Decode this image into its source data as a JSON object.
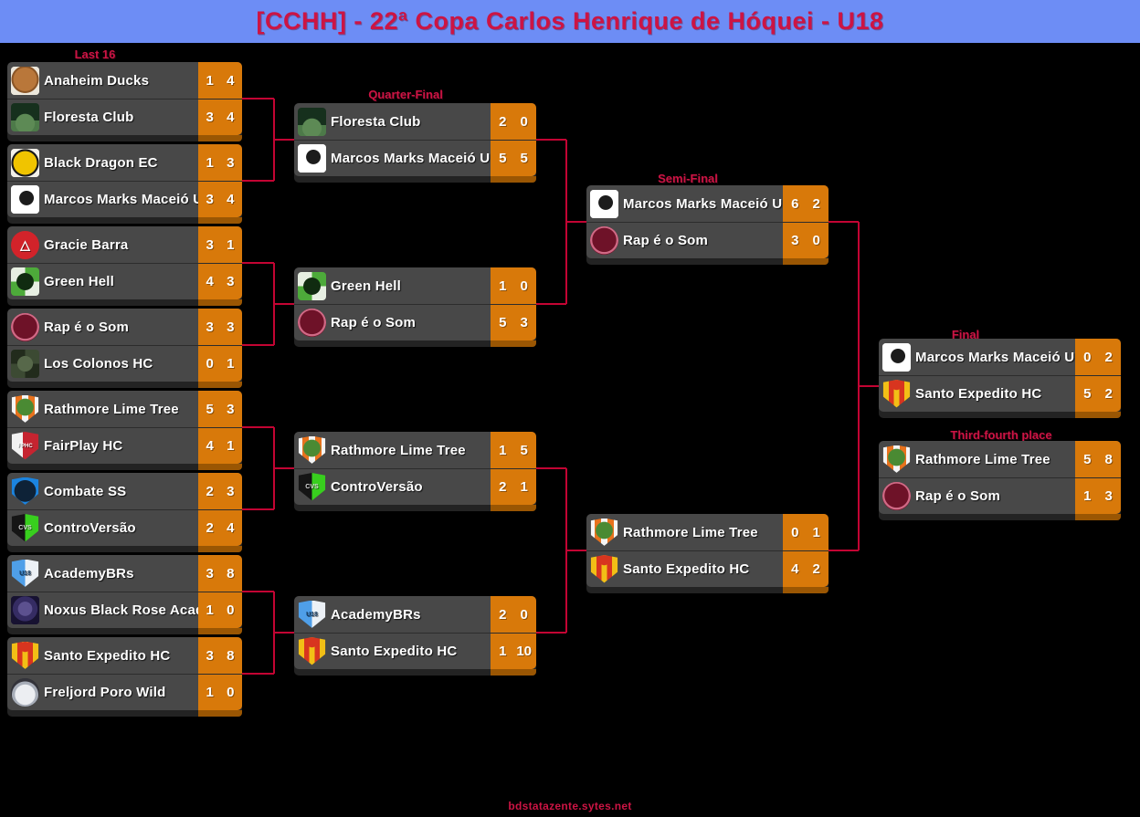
{
  "header": {
    "title": "[CCHH] - 22ª Copa Carlos Henrique de Hóquei - U18"
  },
  "footer": {
    "site": "bdstatazente.sytes.net"
  },
  "colors": {
    "page_bg": "#000000",
    "header_bg": "#6d8df5",
    "title_text": "#cc1444",
    "round_label_text": "#cc1444",
    "card_bg": "#484848",
    "score_box_bg": "#d8790a",
    "score_box_shadow": "#9a5603",
    "connector_line": "#c30433",
    "team_text": "#ffffff",
    "score_text": "#ffffff"
  },
  "teams": {
    "Anaheim Ducks": {
      "logo": {
        "shape": "square",
        "bg": "#ece7db",
        "emblem": "radial-gradient(circle at 50% 45%, #b9773a 55%, #8a5526 57% 64%, #ece7db 66%)",
        "text": "",
        "text_color": "",
        "text_size": ""
      }
    },
    "Floresta Club": {
      "logo": {
        "shape": "square",
        "bg": "linear-gradient(180deg, #16301d 0 62%, #4d7a49 62%)",
        "emblem": "radial-gradient(circle at 50% 72%, #5d8a55 38%, transparent 40%)",
        "text": "",
        "text_color": "",
        "text_size": ""
      }
    },
    "Black Dragon EC": {
      "logo": {
        "shape": "square",
        "bg": "#f3f1ea",
        "emblem": "radial-gradient(circle at 50% 50%, #f0c400 58%, #1a1a1a 60% 68%, #f3f1ea 70%)",
        "text": "",
        "text_color": "",
        "text_size": ""
      }
    },
    "Marcos Marks Maceió U18": {
      "logo": {
        "shape": "square",
        "bg": "#ffffff",
        "emblem": "radial-gradient(circle at 55% 45%, #1c1c1c 32%, #ffffff 34%)",
        "text": "",
        "text_color": "",
        "text_size": ""
      }
    },
    "Gracie Barra": {
      "logo": {
        "shape": "circle",
        "bg": "#d2232a",
        "emblem": "none",
        "text": "△",
        "text_color": "#ffffff",
        "text_size": "14px"
      }
    },
    "Green Hell": {
      "logo": {
        "shape": "square",
        "bg": "conic-gradient(#4daa3a 0 25%, #e7efe2 0 50%, #4daa3a 0 75%, #e7efe2 0)",
        "emblem": "radial-gradient(circle, #102b10 42%, transparent 44%)",
        "text": "",
        "text_color": "",
        "text_size": ""
      }
    },
    "Rap é o Som": {
      "logo": {
        "shape": "circle",
        "bg": "#ae2e50",
        "emblem": "radial-gradient(circle at 50% 48%, #6e1228 58%, #d06a86 60% 68%, #6e1228 70%)",
        "text": "",
        "text_color": "",
        "text_size": ""
      }
    },
    "Los Colonos HC": {
      "logo": {
        "shape": "square",
        "bg": "conic-gradient(#3c4a33 0 25%, #222b1c 0 50%, #3c4a33 0 75%, #222b1c 0)",
        "emblem": "radial-gradient(circle, #57684a 38%, transparent 40%)",
        "text": "",
        "text_color": "",
        "text_size": ""
      }
    },
    "Rathmore Lime Tree": {
      "logo": {
        "shape": "shield",
        "bg": "linear-gradient(90deg, #f5f5f5 0 16%, #e8721d 16% 38%, #f5f5f5 38% 62%, #e8721d 62% 84%, #f5f5f5 84%)",
        "emblem": "radial-gradient(circle at 50% 42%, #4a8a33 38%, transparent 41%)",
        "text": "",
        "text_color": "",
        "text_size": ""
      }
    },
    "FairPlay HC": {
      "logo": {
        "shape": "shield",
        "bg": "linear-gradient(90deg, #f2f2f2 0 42%, #c62430 42%)",
        "emblem": "none",
        "text": "FPHC",
        "text_color": "#ffffff",
        "text_size": "6px"
      }
    },
    "Combate SS": {
      "logo": {
        "shape": "shield",
        "bg": "#1b84e0",
        "emblem": "radial-gradient(circle at 50% 48%, #0e2237 52%, transparent 54%)",
        "text": "",
        "text_color": "",
        "text_size": ""
      }
    },
    "ControVersão": {
      "logo": {
        "shape": "shield",
        "bg": "linear-gradient(90deg, #151515 0 50%, #38cf1e 50%)",
        "emblem": "none",
        "text": "CVS",
        "text_color": "#dddddd",
        "text_size": "7px"
      }
    },
    "AcademyBRs": {
      "logo": {
        "shape": "shield",
        "bg": "linear-gradient(90deg, #4f9fe8 0 50%, #ecf1f6 50%)",
        "emblem": "none",
        "text": "U18",
        "text_color": "#10365c",
        "text_size": "7px"
      }
    },
    "Noxus Black Rose Academy": {
      "logo": {
        "shape": "square",
        "bg": "#171231",
        "emblem": "radial-gradient(circle at 50% 45%, #5c518f 33%, #352c63 35% 58%, #171231 60%)",
        "text": "",
        "text_color": "",
        "text_size": ""
      }
    },
    "Santo Expedito HC": {
      "logo": {
        "shape": "shield",
        "bg": "linear-gradient(90deg, #f2bf16 0 22%, #d8351f 22% 40%, #f2bf16 40% 60%, #d8351f 60% 78%, #f2bf16 78%)",
        "emblem": "radial-gradient(circle at 50% 18%, #d8351f 18%, transparent 20%)",
        "text": "",
        "text_color": "",
        "text_size": ""
      }
    },
    "Freljord Poro Wild": {
      "logo": {
        "shape": "circle",
        "bg": "#33333a",
        "emblem": "radial-gradient(circle at 50% 58%, #eceef2 46%, #a7adb8 48% 60%, #33333a 62%)",
        "text": "",
        "text_color": "",
        "text_size": ""
      }
    }
  },
  "rounds": [
    {
      "label": "Last 16",
      "matches": [
        {
          "rows": [
            {
              "team": "Anaheim Ducks",
              "scores": [
                "1",
                "4"
              ]
            },
            {
              "team": "Floresta Club",
              "scores": [
                "3",
                "4"
              ]
            }
          ]
        },
        {
          "rows": [
            {
              "team": "Black Dragon EC",
              "scores": [
                "1",
                "3"
              ]
            },
            {
              "team": "Marcos Marks Maceió U18",
              "scores": [
                "3",
                "4"
              ]
            }
          ]
        },
        {
          "rows": [
            {
              "team": "Gracie Barra",
              "scores": [
                "3",
                "1"
              ]
            },
            {
              "team": "Green Hell",
              "scores": [
                "4",
                "3"
              ]
            }
          ]
        },
        {
          "rows": [
            {
              "team": "Rap é o Som",
              "scores": [
                "3",
                "3"
              ]
            },
            {
              "team": "Los Colonos HC",
              "scores": [
                "0",
                "1"
              ]
            }
          ]
        },
        {
          "rows": [
            {
              "team": "Rathmore Lime Tree",
              "scores": [
                "5",
                "3"
              ]
            },
            {
              "team": "FairPlay HC",
              "scores": [
                "4",
                "1"
              ]
            }
          ]
        },
        {
          "rows": [
            {
              "team": "Combate SS",
              "scores": [
                "2",
                "3"
              ]
            },
            {
              "team": "ControVersão",
              "scores": [
                "2",
                "4"
              ]
            }
          ]
        },
        {
          "rows": [
            {
              "team": "AcademyBRs",
              "scores": [
                "3",
                "8"
              ]
            },
            {
              "team": "Noxus Black Rose Academy",
              "scores": [
                "1",
                "0"
              ]
            }
          ]
        },
        {
          "rows": [
            {
              "team": "Santo Expedito HC",
              "scores": [
                "3",
                "8"
              ]
            },
            {
              "team": "Freljord Poro Wild",
              "scores": [
                "1",
                "0"
              ]
            }
          ]
        }
      ]
    },
    {
      "label": "Quarter-Final",
      "matches": [
        {
          "rows": [
            {
              "team": "Floresta Club",
              "scores": [
                "2",
                "0"
              ]
            },
            {
              "team": "Marcos Marks Maceió U18",
              "scores": [
                "5",
                "5"
              ]
            }
          ]
        },
        {
          "rows": [
            {
              "team": "Green Hell",
              "scores": [
                "1",
                "0"
              ]
            },
            {
              "team": "Rap é o Som",
              "scores": [
                "5",
                "3"
              ]
            }
          ]
        },
        {
          "rows": [
            {
              "team": "Rathmore Lime Tree",
              "scores": [
                "1",
                "5"
              ]
            },
            {
              "team": "ControVersão",
              "scores": [
                "2",
                "1"
              ]
            }
          ]
        },
        {
          "rows": [
            {
              "team": "AcademyBRs",
              "scores": [
                "2",
                "0"
              ]
            },
            {
              "team": "Santo Expedito HC",
              "scores": [
                "1",
                "10"
              ]
            }
          ]
        }
      ]
    },
    {
      "label": "Semi-Final",
      "matches": [
        {
          "rows": [
            {
              "team": "Marcos Marks Maceió U18",
              "scores": [
                "6",
                "2"
              ]
            },
            {
              "team": "Rap é o Som",
              "scores": [
                "3",
                "0"
              ]
            }
          ]
        },
        {
          "rows": [
            {
              "team": "Rathmore Lime Tree",
              "scores": [
                "0",
                "1"
              ]
            },
            {
              "team": "Santo Expedito HC",
              "scores": [
                "4",
                "2"
              ]
            }
          ]
        }
      ]
    },
    {
      "label": "Final",
      "matches": [
        {
          "rows": [
            {
              "team": "Marcos Marks Maceió U18",
              "scores": [
                "0",
                "2"
              ]
            },
            {
              "team": "Santo Expedito HC",
              "scores": [
                "5",
                "2"
              ]
            }
          ]
        }
      ]
    },
    {
      "label": "Third-fourth place",
      "matches": [
        {
          "rows": [
            {
              "team": "Rathmore Lime Tree",
              "scores": [
                "5",
                "8"
              ]
            },
            {
              "team": "Rap é o Som",
              "scores": [
                "1",
                "3"
              ]
            }
          ]
        }
      ]
    }
  ]
}
